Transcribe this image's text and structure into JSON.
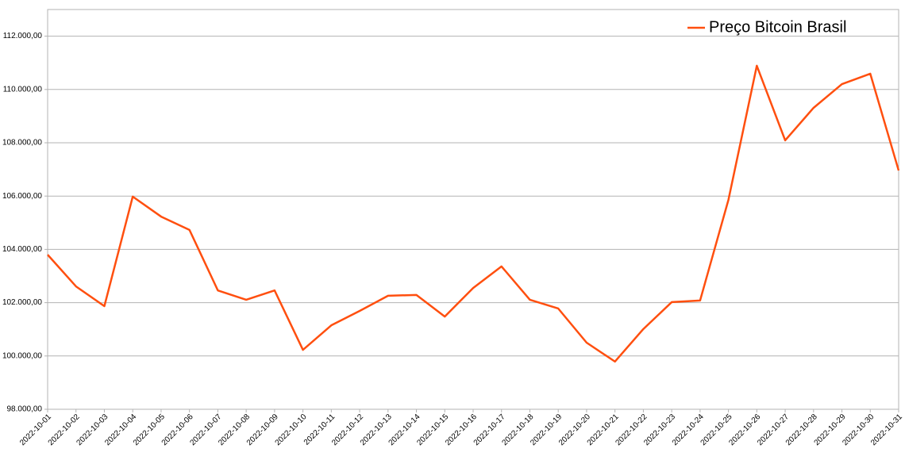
{
  "chart_data": {
    "type": "line",
    "categories": [
      "2022-10-01",
      "2022-10-02",
      "2022-10-03",
      "2022-10-04",
      "2022-10-05",
      "2022-10-06",
      "2022-10-07",
      "2022-10-08",
      "2022-10-09",
      "2022-10-10",
      "2022-10-11",
      "2022-10-12",
      "2022-10-13",
      "2022-10-14",
      "2022-10-15",
      "2022-10-16",
      "2022-10-17",
      "2022-10-18",
      "2022-10-19",
      "2022-10-20",
      "2022-10-21",
      "2022-10-22",
      "2022-10-23",
      "2022-10-24",
      "2022-10-25",
      "2022-10-26",
      "2022-10-27",
      "2022-10-28",
      "2022-10-29",
      "2022-10-30",
      "2022-10-31"
    ],
    "series": [
      {
        "name": "Preço Bitcoin Brasil",
        "color": "#ff4f0f",
        "values": [
          103800,
          102610,
          101870,
          105980,
          105230,
          104730,
          102460,
          102110,
          102460,
          100230,
          101150,
          101690,
          102260,
          102290,
          101480,
          102550,
          103360,
          102110,
          101780,
          100500,
          99790,
          101010,
          102020,
          102080,
          105860,
          110890,
          108090,
          109310,
          110200,
          110590,
          106960
        ]
      }
    ],
    "ylim": [
      98000,
      113000
    ],
    "yticks": [
      {
        "value": 98000,
        "label": "98.000,00"
      },
      {
        "value": 100000,
        "label": "100.000,00"
      },
      {
        "value": 102000,
        "label": "102.000,00"
      },
      {
        "value": 104000,
        "label": "104.000,00"
      },
      {
        "value": 106000,
        "label": "106.000,00"
      },
      {
        "value": 108000,
        "label": "108.000,00"
      },
      {
        "value": 110000,
        "label": "110.000,00"
      },
      {
        "value": 112000,
        "label": "112.000,00"
      }
    ],
    "grid": true,
    "legend": "top-right"
  }
}
